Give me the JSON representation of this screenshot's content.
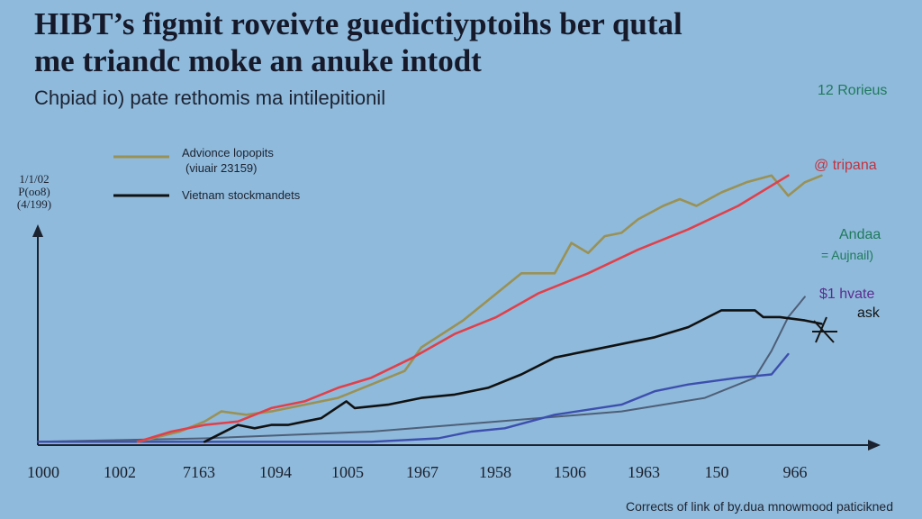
{
  "title_line1": "HIBT’s figmit roveivte guedictiyptoihs ber qutal",
  "title_line2": "me triandc moke an anuke intodt",
  "subtitle": "Chpiad io) pate rethomis ma intilepitionil",
  "footer": "Corrects of link of by.dua mnowmood paticikned",
  "colors": {
    "background": "#8fbadb",
    "olive": "#9a9155",
    "red": "#e0404a",
    "black": "#111111",
    "blue": "#3d4fae",
    "slate": "#4e5f78",
    "label_green": "#1f7a5c",
    "label_red": "#c6323e",
    "label_purple": "#5a2e90"
  },
  "chart_data": {
    "type": "line",
    "title": "HIBT’s figmit roveivte guedictiyptoihs ber qutal me triandc moke an anuke intodt",
    "subtitle": "Chpiad io) pate rethomis ma intilepitionil",
    "ylabel": "1/1/02 P(oo8) (4/199)",
    "xlabel": "",
    "xlim": [
      0,
      100
    ],
    "ylim": [
      0,
      100
    ],
    "grid": false,
    "x_tick_labels": [
      "1000",
      "1002",
      "7163",
      "1094",
      "1005",
      "1967",
      "1958",
      "1506",
      "1963",
      "150",
      "966"
    ],
    "legend": [
      {
        "label": "Advionce lopopits",
        "label2": "(viuair 23159)",
        "series": "olive"
      },
      {
        "label": "Vietnam stockmandets",
        "series": "black"
      }
    ],
    "end_labels": [
      {
        "text": "Rorieus",
        "prefix": "12",
        "color": "label_green"
      },
      {
        "text": "tripana",
        "prefix": "@",
        "color": "label_red"
      },
      {
        "text": "Andaa",
        "color": "label_green"
      },
      {
        "text": "Aujnail)",
        "prefix": "=",
        "color": "label_green"
      },
      {
        "text": "hvate",
        "prefix": "$1",
        "color": "label_purple"
      },
      {
        "text": "ask",
        "prefix": "",
        "color": "black"
      }
    ],
    "series": [
      {
        "name": "Advionce lopopits",
        "color": "olive",
        "x": [
          12,
          17,
          20,
          22,
          25,
          28,
          32,
          36,
          40,
          42,
          44,
          46,
          51,
          55,
          58,
          62,
          64,
          66,
          68,
          70,
          72,
          75,
          77,
          79,
          82,
          85,
          88,
          90,
          92,
          94
        ],
        "y": [
          1,
          4,
          7,
          10,
          9,
          10,
          12,
          14,
          18,
          20,
          22,
          29,
          37,
          45,
          51,
          51,
          60,
          57,
          62,
          63,
          67,
          71,
          73,
          71,
          75,
          78,
          80,
          74,
          78,
          80
        ]
      },
      {
        "name": "",
        "color": "red",
        "x": [
          12,
          16,
          20,
          24,
          28,
          32,
          36,
          40,
          45,
          50,
          55,
          60,
          66,
          72,
          78,
          84,
          90
        ],
        "y": [
          1,
          4,
          6,
          7,
          11,
          13,
          17,
          20,
          26,
          33,
          38,
          45,
          51,
          58,
          64,
          71,
          80
        ]
      },
      {
        "name": "Vietnam stockmandets",
        "color": "black",
        "x": [
          20,
          24,
          26,
          28,
          30,
          32,
          34,
          37,
          38,
          42,
          46,
          50,
          54,
          58,
          62,
          66,
          70,
          74,
          78,
          82,
          86,
          87,
          89,
          92,
          94
        ],
        "y": [
          1,
          6,
          5,
          6,
          6,
          7,
          8,
          13,
          11,
          12,
          14,
          15,
          17,
          21,
          26,
          28,
          30,
          32,
          35,
          40,
          40,
          38,
          38,
          37,
          36
        ]
      },
      {
        "name": "",
        "color": "blue",
        "x": [
          0,
          20,
          40,
          48,
          52,
          56,
          62,
          70,
          74,
          78,
          84,
          88,
          90
        ],
        "y": [
          1,
          1,
          1,
          2,
          4,
          5,
          9,
          12,
          16,
          18,
          20,
          21,
          27
        ]
      },
      {
        "name": "",
        "color": "slate",
        "x": [
          0,
          20,
          30,
          40,
          50,
          60,
          70,
          80,
          86,
          88,
          90,
          92
        ],
        "y": [
          1,
          2,
          3,
          4,
          6,
          8,
          10,
          14,
          20,
          28,
          38,
          44
        ]
      }
    ]
  }
}
